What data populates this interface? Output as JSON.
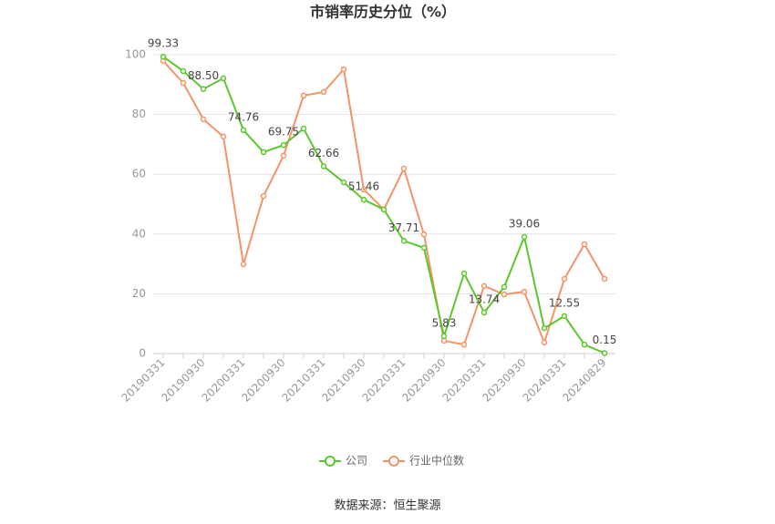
{
  "chart_data": {
    "type": "line",
    "title": "市销率历史分位（%）",
    "categories": [
      "20190331",
      null,
      "20190930",
      null,
      "20200331",
      null,
      "20200930",
      null,
      "20210331",
      null,
      "20210930",
      null,
      "20220331",
      null,
      "20220930",
      null,
      "20230331",
      null,
      "20230930",
      null,
      "20240331",
      null,
      "20240829"
    ],
    "series": [
      {
        "name": "公司",
        "color": "#5cc72c",
        "values": [
          99.33,
          94.5,
          88.5,
          92.1,
          74.76,
          67.4,
          69.75,
          75.3,
          62.66,
          57.3,
          51.46,
          48.2,
          37.71,
          35.4,
          5.83,
          26.8,
          13.74,
          22.3,
          39.06,
          8.5,
          12.55,
          3.0,
          0.15
        ],
        "value_labels": [
          "99.33",
          null,
          "88.50",
          null,
          "74.76",
          null,
          "69.75",
          null,
          "62.66",
          null,
          "51.46",
          null,
          "37.71",
          null,
          "5.83",
          null,
          "13.74",
          null,
          "39.06",
          null,
          "12.55",
          null,
          "0.15"
        ]
      },
      {
        "name": "行业中位数",
        "color": "#f39468",
        "values": [
          97.9,
          90.5,
          78.4,
          72.6,
          29.9,
          52.7,
          66.2,
          86.3,
          87.5,
          95.1,
          54.9,
          48.2,
          61.9,
          39.9,
          4.3,
          3.0,
          22.6,
          19.8,
          20.7,
          3.7,
          25.0,
          36.6,
          25.0
        ]
      }
    ],
    "ylim": [
      0,
      100
    ],
    "yticks": [
      0,
      20,
      40,
      60,
      80,
      100
    ],
    "grid": true,
    "legend": "bottom",
    "source": "数据来源：恒生聚源"
  }
}
